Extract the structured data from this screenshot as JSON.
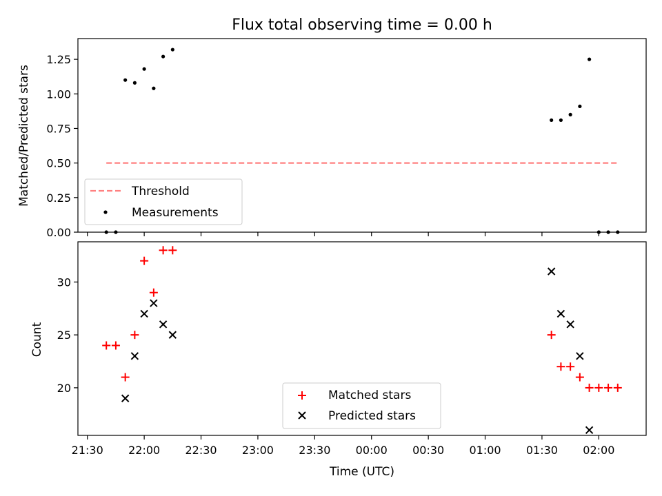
{
  "chart_data": [
    {
      "type": "scatter",
      "title": "Flux total observing time = 0.00 h",
      "xlabel": "",
      "ylabel": "Matched/Predicted stars",
      "ylim": [
        0,
        1.4
      ],
      "yticks": [
        0.0,
        0.25,
        0.5,
        0.75,
        1.0,
        1.25
      ],
      "ytick_labels": [
        "0.00",
        "0.25",
        "0.50",
        "0.75",
        "1.00",
        "1.25"
      ],
      "legend_position": "bottom-left",
      "series": [
        {
          "name": "Threshold",
          "kind": "dashed-line",
          "color": "#ff8080",
          "x": [
            "21:40",
            "02:10"
          ],
          "y": [
            0.5,
            0.5
          ]
        },
        {
          "name": "Measurements",
          "kind": "dot",
          "color": "#000000",
          "x": [
            "21:40",
            "21:45",
            "21:50",
            "21:55",
            "22:00",
            "22:05",
            "22:10",
            "22:15",
            "01:35",
            "01:40",
            "01:45",
            "01:50",
            "01:55",
            "02:00",
            "02:05",
            "02:10"
          ],
          "y": [
            0.0,
            0.0,
            1.1,
            1.08,
            1.18,
            1.04,
            1.27,
            1.32,
            0.81,
            0.81,
            0.85,
            0.91,
            1.25,
            0.0,
            0.0,
            0.0
          ]
        }
      ]
    },
    {
      "type": "scatter",
      "title": "",
      "xlabel": "Time (UTC)",
      "ylabel": "Count",
      "ylim": [
        15.5,
        33.8
      ],
      "yticks": [
        20,
        25,
        30
      ],
      "ytick_labels": [
        "20",
        "25",
        "30"
      ],
      "xlim": [
        "21:25",
        "02:25"
      ],
      "xticks": [
        "21:30",
        "22:00",
        "22:30",
        "23:00",
        "23:30",
        "00:00",
        "00:30",
        "01:00",
        "01:30",
        "02:00"
      ],
      "legend_position": "bottom-center",
      "series": [
        {
          "name": "Matched stars",
          "marker": "plus",
          "color": "#ff0000",
          "x": [
            "21:40",
            "21:45",
            "21:50",
            "21:55",
            "22:00",
            "22:05",
            "22:10",
            "22:15",
            "01:35",
            "01:40",
            "01:45",
            "01:50",
            "01:55",
            "02:00",
            "02:05",
            "02:10"
          ],
          "y": [
            24,
            24,
            21,
            25,
            32,
            29,
            33,
            33,
            25,
            22,
            22,
            21,
            20,
            20,
            20,
            20
          ]
        },
        {
          "name": "Predicted stars",
          "marker": "x",
          "color": "#000000",
          "x": [
            "21:50",
            "21:55",
            "22:00",
            "22:05",
            "22:10",
            "22:15",
            "01:35",
            "01:40",
            "01:45",
            "01:50",
            "01:55"
          ],
          "y": [
            19,
            23,
            27,
            28,
            26,
            25,
            31,
            27,
            26,
            23,
            16
          ]
        }
      ]
    }
  ]
}
